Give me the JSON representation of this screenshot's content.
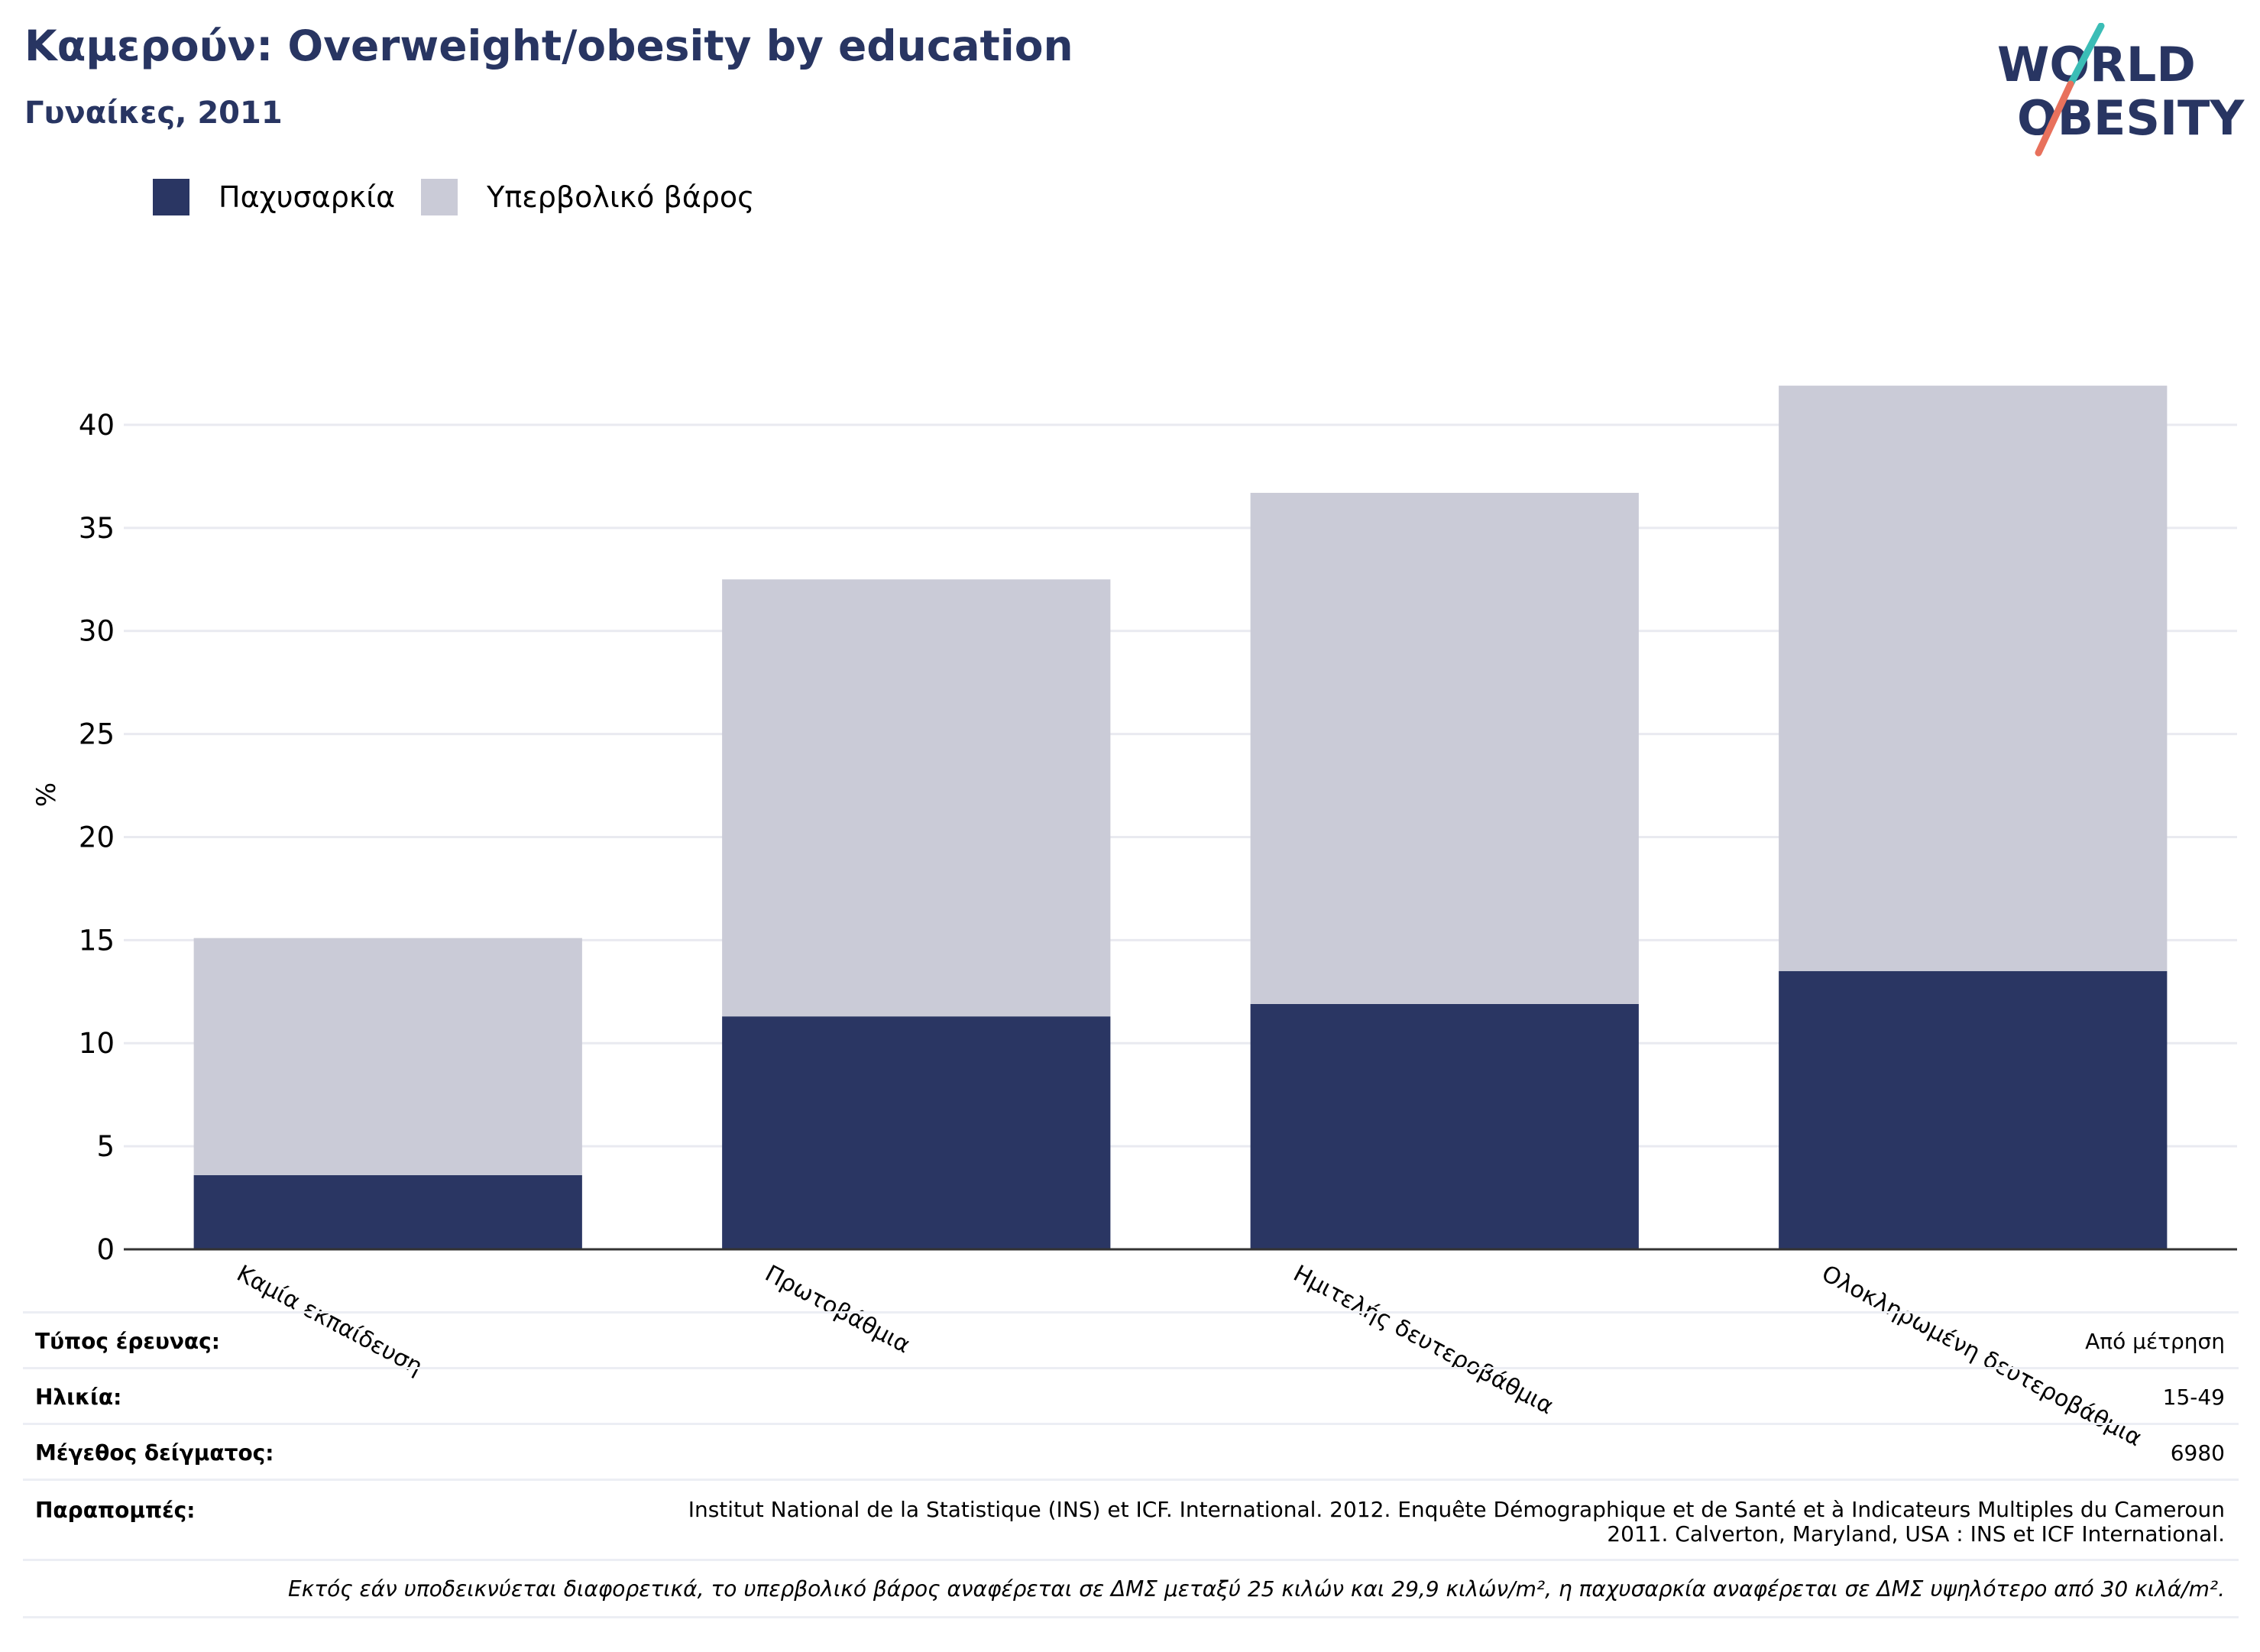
{
  "header": {
    "title": "Καμερούν: Overweight/obesity by education",
    "subtitle": "Γυναίκες, 2011"
  },
  "logo": {
    "line1": "WORLD",
    "line2": "OBESITY"
  },
  "colors": {
    "obesity": "#2a3663",
    "overweight": "#cacbd7",
    "title": "#283562",
    "logo_text": "#283562",
    "logo_teal": "#3bbdb6",
    "logo_coral": "#e8715c",
    "gridline": "#e9eaf0",
    "axis": "#333333"
  },
  "legend": {
    "items": [
      {
        "label": "Παχυσαρκία",
        "color": "#2a3663"
      },
      {
        "label": "Υπερβολικό βάρος",
        "color": "#cacbd7"
      }
    ]
  },
  "chart_data": {
    "type": "bar",
    "stacked": true,
    "ylabel": "%",
    "ylim": [
      0,
      42
    ],
    "yticks": [
      0,
      5,
      10,
      15,
      20,
      25,
      30,
      35,
      40
    ],
    "categories": [
      "Καμία εκπαίδευση",
      "Πρωτοβάθμια",
      "Ημιτελής δευτεροβάθμια",
      "Ολοκληρωμένη δευτεροβάθμια"
    ],
    "series": [
      {
        "name": "Παχυσαρκία",
        "values": [
          3.6,
          11.3,
          11.9,
          13.5
        ]
      },
      {
        "name": "Υπερβολικό βάρος",
        "values": [
          11.5,
          21.2,
          24.8,
          28.4
        ]
      }
    ],
    "grid": true,
    "legend_position": "top-left"
  },
  "footer": {
    "survey_type": {
      "label": "Τύπος έρευνας:",
      "value": "Από μέτρηση"
    },
    "age": {
      "label": "Ηλικία:",
      "value": "15-49"
    },
    "sample_size": {
      "label": "Μέγεθος δείγματος:",
      "value": "6980"
    },
    "references": {
      "label": "Παραπομπές:",
      "value": "Institut National de la Statistique (INS) et ICF. International. 2012. Enquête Démographique et de Santé et à Indicateurs Multiples du Cameroun 2011. Calverton, Maryland, USA : INS et ICF International."
    },
    "note": "Εκτός εάν υποδεικνύεται διαφορετικά, το υπερβολικό βάρος αναφέρεται σε ΔΜΣ μεταξύ 25 κιλών και 29,9 κιλών/m², η παχυσαρκία αναφέρεται σε ΔΜΣ υψηλότερο από 30 κιλά/m²."
  }
}
